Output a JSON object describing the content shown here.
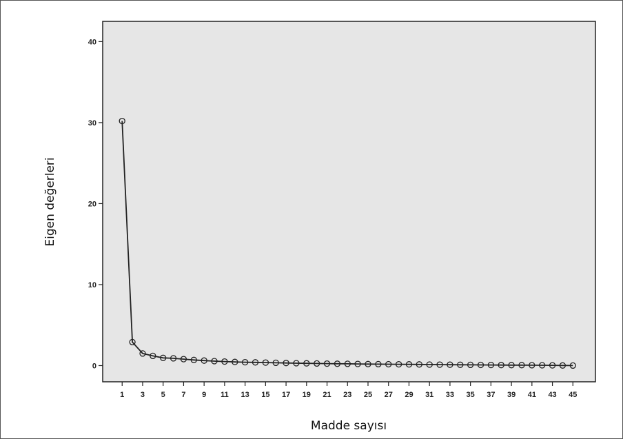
{
  "chart_data": {
    "type": "line",
    "xlabel": "Madde sayısı",
    "ylabel": "Eigen değerleri",
    "ylim": [
      -2,
      42.5
    ],
    "xlim": [
      -0.9,
      47.2
    ],
    "y_ticks": [
      0,
      10,
      20,
      30,
      40
    ],
    "x_ticks": [
      1,
      3,
      5,
      7,
      9,
      11,
      13,
      15,
      17,
      19,
      21,
      23,
      25,
      27,
      29,
      31,
      33,
      35,
      37,
      39,
      41,
      43,
      45
    ],
    "grid": false,
    "legend": "none",
    "plot_background": "#e6e6e6",
    "line_color": "#222222",
    "series": [
      {
        "x": [
          1,
          2,
          3,
          4,
          5,
          6,
          7,
          8,
          9,
          10,
          11,
          12,
          13,
          14,
          15,
          16,
          17,
          18,
          19,
          20,
          21,
          22,
          23,
          24,
          25,
          26,
          27,
          28,
          29,
          30,
          31,
          32,
          33,
          34,
          35,
          36,
          37,
          38,
          39,
          40,
          41,
          42,
          43,
          44,
          45
        ],
        "values": [
          30.2,
          2.9,
          1.5,
          1.2,
          0.95,
          0.9,
          0.8,
          0.7,
          0.62,
          0.55,
          0.5,
          0.45,
          0.42,
          0.4,
          0.37,
          0.35,
          0.32,
          0.3,
          0.28,
          0.26,
          0.25,
          0.23,
          0.22,
          0.2,
          0.19,
          0.18,
          0.17,
          0.16,
          0.15,
          0.14,
          0.13,
          0.12,
          0.11,
          0.1,
          0.09,
          0.085,
          0.08,
          0.07,
          0.06,
          0.055,
          0.05,
          0.04,
          0.03,
          0.02,
          0.01
        ]
      }
    ]
  }
}
